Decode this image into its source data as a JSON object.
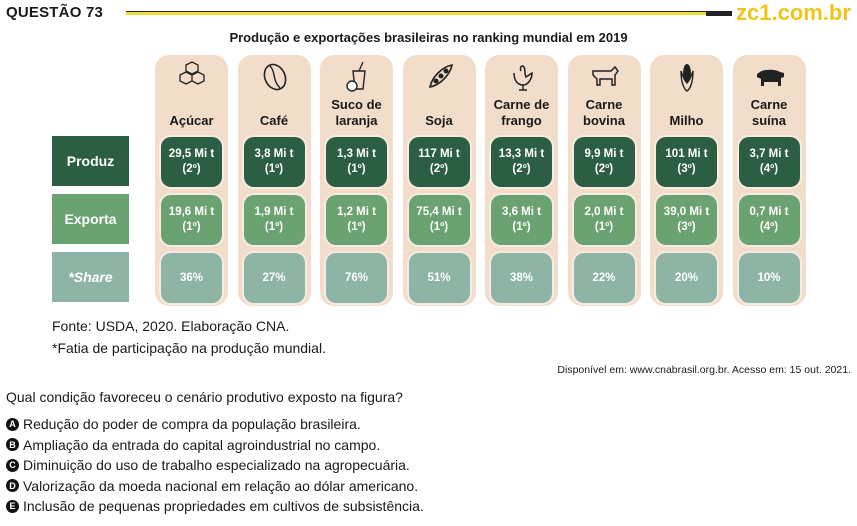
{
  "header": {
    "question": "QUESTÃO 73",
    "brand": "zc1.com.br",
    "brand_color": "#f0c419"
  },
  "figure": {
    "title": "Produção e exportações brasileiras no ranking mundial em 2019",
    "row_labels": [
      "Produz",
      "Exporta",
      "*Share"
    ],
    "colors": {
      "produz": "#2c5e44",
      "exporta": "#6aa271",
      "share": "#8db4a4",
      "column": "#f1ddca"
    },
    "columns": [
      {
        "name": "Açúcar",
        "icon": "sugar-cubes-icon",
        "produz": "29,5 Mi t",
        "produz_rank": "(2º)",
        "exporta": "19,6 Mi t",
        "exporta_rank": "(1º)",
        "share": "36%"
      },
      {
        "name": "Café",
        "icon": "coffee-bean-icon",
        "produz": "3,8 Mi t",
        "produz_rank": "(1º)",
        "exporta": "1,9 Mi t",
        "exporta_rank": "(1º)",
        "share": "27%"
      },
      {
        "name": "Suco de laranja",
        "icon": "juice-glass-icon",
        "produz": "1,3 Mi t",
        "produz_rank": "(1º)",
        "exporta": "1,2 Mi t",
        "exporta_rank": "(1º)",
        "share": "76%"
      },
      {
        "name": "Soja",
        "icon": "soy-pod-icon",
        "produz": "117 Mi t",
        "produz_rank": "(2º)",
        "exporta": "75,4 Mi t",
        "exporta_rank": "(1º)",
        "share": "51%"
      },
      {
        "name": "Carne de frango",
        "icon": "chicken-icon",
        "produz": "13,3 Mi t",
        "produz_rank": "(2º)",
        "exporta": "3,6 Mi t",
        "exporta_rank": "(1º)",
        "share": "38%"
      },
      {
        "name": "Carne bovina",
        "icon": "cow-icon",
        "produz": "9,9 Mi t",
        "produz_rank": "(2º)",
        "exporta": "2,0 Mi t",
        "exporta_rank": "(1º)",
        "share": "22%"
      },
      {
        "name": "Milho",
        "icon": "corn-icon",
        "produz": "101 Mi t",
        "produz_rank": "(3º)",
        "exporta": "39,0 Mi t",
        "exporta_rank": "(3º)",
        "share": "20%"
      },
      {
        "name": "Carne suína",
        "icon": "pig-icon",
        "produz": "3,7 Mi t",
        "produz_rank": "(4º)",
        "exporta": "0,7 Mi t",
        "exporta_rank": "(4º)",
        "share": "10%"
      }
    ],
    "source": "Fonte: USDA, 2020. Elaboração CNA.",
    "note": "*Fatia de participação na produção mundial.",
    "available": "Disponível em: www.cnabrasil.org.br. Acesso em: 15 out. 2021."
  },
  "question": "Qual condição favoreceu o cenário produtivo exposto na figura?",
  "options": [
    {
      "letter": "A",
      "text": "Redução do poder de compra da população brasileira."
    },
    {
      "letter": "B",
      "text": "Ampliação da entrada do capital agroindustrial no campo."
    },
    {
      "letter": "C",
      "text": "Diminuição do uso de trabalho especializado na agropecuária."
    },
    {
      "letter": "D",
      "text": "Valorização da moeda nacional em relação ao dólar americano."
    },
    {
      "letter": "E",
      "text": "Inclusão de pequenas propriedades em cultivos de subsistência."
    }
  ]
}
